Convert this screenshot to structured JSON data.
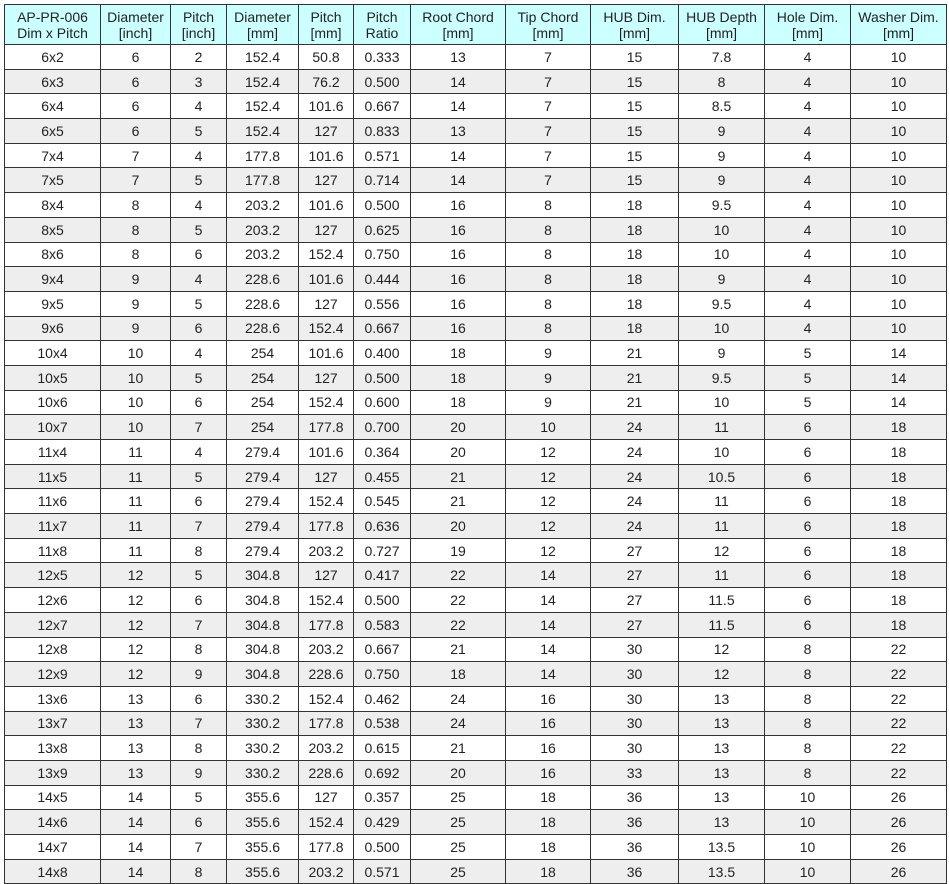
{
  "table": {
    "headers": [
      [
        "AP-PR-006",
        "Dim x Pitch"
      ],
      [
        "Diameter",
        "[inch]"
      ],
      [
        "Pitch",
        "[inch]"
      ],
      [
        "Diameter",
        "[mm]"
      ],
      [
        "Pitch",
        "[mm]"
      ],
      [
        "Pitch",
        "Ratio"
      ],
      [
        "Root Chord",
        "[mm]"
      ],
      [
        "Tip Chord",
        "[mm]"
      ],
      [
        "HUB Dim.",
        "[mm]"
      ],
      [
        "HUB Depth",
        "[mm]"
      ],
      [
        "Hole Dim.",
        "[mm]"
      ],
      [
        "Washer Dim.",
        "[mm]"
      ]
    ],
    "header_color": "#ccffff",
    "alt_row_color": "#eeeeee",
    "rows": [
      [
        "6x2",
        "6",
        "2",
        "152.4",
        "50.8",
        "0.333",
        "13",
        "7",
        "15",
        "7.8",
        "4",
        "10"
      ],
      [
        "6x3",
        "6",
        "3",
        "152.4",
        "76.2",
        "0.500",
        "14",
        "7",
        "15",
        "8",
        "4",
        "10"
      ],
      [
        "6x4",
        "6",
        "4",
        "152.4",
        "101.6",
        "0.667",
        "14",
        "7",
        "15",
        "8.5",
        "4",
        "10"
      ],
      [
        "6x5",
        "6",
        "5",
        "152.4",
        "127",
        "0.833",
        "13",
        "7",
        "15",
        "9",
        "4",
        "10"
      ],
      [
        "7x4",
        "7",
        "4",
        "177.8",
        "101.6",
        "0.571",
        "14",
        "7",
        "15",
        "9",
        "4",
        "10"
      ],
      [
        "7x5",
        "7",
        "5",
        "177.8",
        "127",
        "0.714",
        "14",
        "7",
        "15",
        "9",
        "4",
        "10"
      ],
      [
        "8x4",
        "8",
        "4",
        "203.2",
        "101.6",
        "0.500",
        "16",
        "8",
        "18",
        "9.5",
        "4",
        "10"
      ],
      [
        "8x5",
        "8",
        "5",
        "203.2",
        "127",
        "0.625",
        "16",
        "8",
        "18",
        "10",
        "4",
        "10"
      ],
      [
        "8x6",
        "8",
        "6",
        "203.2",
        "152.4",
        "0.750",
        "16",
        "8",
        "18",
        "10",
        "4",
        "10"
      ],
      [
        "9x4",
        "9",
        "4",
        "228.6",
        "101.6",
        "0.444",
        "16",
        "8",
        "18",
        "9",
        "4",
        "10"
      ],
      [
        "9x5",
        "9",
        "5",
        "228.6",
        "127",
        "0.556",
        "16",
        "8",
        "18",
        "9.5",
        "4",
        "10"
      ],
      [
        "9x6",
        "9",
        "6",
        "228.6",
        "152.4",
        "0.667",
        "16",
        "8",
        "18",
        "10",
        "4",
        "10"
      ],
      [
        "10x4",
        "10",
        "4",
        "254",
        "101.6",
        "0.400",
        "18",
        "9",
        "21",
        "9",
        "5",
        "14"
      ],
      [
        "10x5",
        "10",
        "5",
        "254",
        "127",
        "0.500",
        "18",
        "9",
        "21",
        "9.5",
        "5",
        "14"
      ],
      [
        "10x6",
        "10",
        "6",
        "254",
        "152.4",
        "0.600",
        "18",
        "9",
        "21",
        "10",
        "5",
        "14"
      ],
      [
        "10x7",
        "10",
        "7",
        "254",
        "177.8",
        "0.700",
        "20",
        "10",
        "24",
        "11",
        "6",
        "18"
      ],
      [
        "11x4",
        "11",
        "4",
        "279.4",
        "101.6",
        "0.364",
        "20",
        "12",
        "24",
        "10",
        "6",
        "18"
      ],
      [
        "11x5",
        "11",
        "5",
        "279.4",
        "127",
        "0.455",
        "21",
        "12",
        "24",
        "10.5",
        "6",
        "18"
      ],
      [
        "11x6",
        "11",
        "6",
        "279.4",
        "152.4",
        "0.545",
        "21",
        "12",
        "24",
        "11",
        "6",
        "18"
      ],
      [
        "11x7",
        "11",
        "7",
        "279.4",
        "177.8",
        "0.636",
        "20",
        "12",
        "24",
        "11",
        "6",
        "18"
      ],
      [
        "11x8",
        "11",
        "8",
        "279.4",
        "203.2",
        "0.727",
        "19",
        "12",
        "27",
        "12",
        "6",
        "18"
      ],
      [
        "12x5",
        "12",
        "5",
        "304.8",
        "127",
        "0.417",
        "22",
        "14",
        "27",
        "11",
        "6",
        "18"
      ],
      [
        "12x6",
        "12",
        "6",
        "304.8",
        "152.4",
        "0.500",
        "22",
        "14",
        "27",
        "11.5",
        "6",
        "18"
      ],
      [
        "12x7",
        "12",
        "7",
        "304.8",
        "177.8",
        "0.583",
        "22",
        "14",
        "27",
        "11.5",
        "6",
        "18"
      ],
      [
        "12x8",
        "12",
        "8",
        "304.8",
        "203.2",
        "0.667",
        "21",
        "14",
        "30",
        "12",
        "8",
        "22"
      ],
      [
        "12x9",
        "12",
        "9",
        "304.8",
        "228.6",
        "0.750",
        "18",
        "14",
        "30",
        "12",
        "8",
        "22"
      ],
      [
        "13x6",
        "13",
        "6",
        "330.2",
        "152.4",
        "0.462",
        "24",
        "16",
        "30",
        "13",
        "8",
        "22"
      ],
      [
        "13x7",
        "13",
        "7",
        "330.2",
        "177.8",
        "0.538",
        "24",
        "16",
        "30",
        "13",
        "8",
        "22"
      ],
      [
        "13x8",
        "13",
        "8",
        "330.2",
        "203.2",
        "0.615",
        "21",
        "16",
        "30",
        "13",
        "8",
        "22"
      ],
      [
        "13x9",
        "13",
        "9",
        "330.2",
        "228.6",
        "0.692",
        "20",
        "16",
        "33",
        "13",
        "8",
        "22"
      ],
      [
        "14x5",
        "14",
        "5",
        "355.6",
        "127",
        "0.357",
        "25",
        "18",
        "36",
        "13",
        "10",
        "26"
      ],
      [
        "14x6",
        "14",
        "6",
        "355.6",
        "152.4",
        "0.429",
        "25",
        "18",
        "36",
        "13",
        "10",
        "26"
      ],
      [
        "14x7",
        "14",
        "7",
        "355.6",
        "177.8",
        "0.500",
        "25",
        "18",
        "36",
        "13.5",
        "10",
        "26"
      ],
      [
        "14x8",
        "14",
        "8",
        "355.6",
        "203.2",
        "0.571",
        "25",
        "18",
        "36",
        "13.5",
        "10",
        "26"
      ]
    ]
  }
}
